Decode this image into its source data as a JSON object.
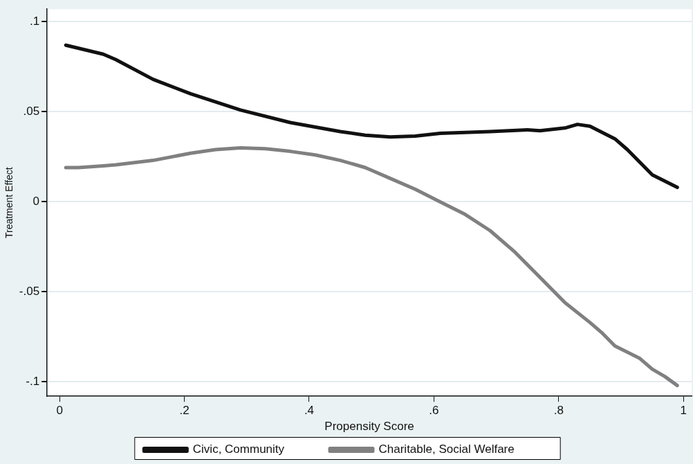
{
  "chart_data": {
    "type": "line",
    "xlabel": "Propensity Score",
    "ylabel": "Treatment Effect",
    "xlim": [
      -0.02,
      1.013
    ],
    "ylim": [
      -0.108,
      0.107
    ],
    "xticks": [
      0,
      {
        "value": 0.2,
        "label": ".2"
      },
      {
        "value": 0.4,
        "label": ".4"
      },
      {
        "value": 0.6,
        "label": ".6"
      },
      {
        "value": 0.8,
        "label": ".8"
      },
      1
    ],
    "yticks": [
      {
        "value": -0.1,
        "label": "-.1"
      },
      {
        "value": -0.05,
        "label": "-.05"
      },
      0,
      {
        "value": 0.05,
        "label": ".05"
      },
      {
        "value": 0.1,
        "label": ".1"
      }
    ],
    "grid": "y",
    "legend": "bottom",
    "marker": "none",
    "line_style": "solid",
    "series": [
      {
        "name": "Civic, Community",
        "color": "#111111",
        "x": [
          0.01,
          0.07,
          0.09,
          0.15,
          0.21,
          0.29,
          0.37,
          0.45,
          0.49,
          0.53,
          0.57,
          0.61,
          0.65,
          0.69,
          0.75,
          0.77,
          0.81,
          0.83,
          0.85,
          0.89,
          0.91,
          0.95,
          0.99
        ],
        "values": [
          0.087,
          0.082,
          0.079,
          0.068,
          0.06,
          0.051,
          0.044,
          0.039,
          0.037,
          0.036,
          0.0365,
          0.038,
          0.0385,
          0.039,
          0.04,
          0.0395,
          0.041,
          0.043,
          0.042,
          0.035,
          0.029,
          0.015,
          0.008
        ]
      },
      {
        "name": "Charitable, Social Welfare",
        "color": "#808080",
        "x": [
          0.01,
          0.03,
          0.07,
          0.09,
          0.15,
          0.21,
          0.25,
          0.29,
          0.33,
          0.37,
          0.41,
          0.45,
          0.49,
          0.53,
          0.57,
          0.61,
          0.65,
          0.69,
          0.73,
          0.77,
          0.81,
          0.85,
          0.87,
          0.89,
          0.93,
          0.95,
          0.97,
          0.99
        ],
        "values": [
          0.019,
          0.019,
          0.02,
          0.0205,
          0.023,
          0.027,
          0.029,
          0.03,
          0.0295,
          0.028,
          0.026,
          0.023,
          0.019,
          0.013,
          0.007,
          0.0,
          -0.007,
          -0.016,
          -0.028,
          -0.042,
          -0.056,
          -0.067,
          -0.073,
          -0.08,
          -0.087,
          -0.093,
          -0.097,
          -0.102
        ]
      }
    ]
  }
}
